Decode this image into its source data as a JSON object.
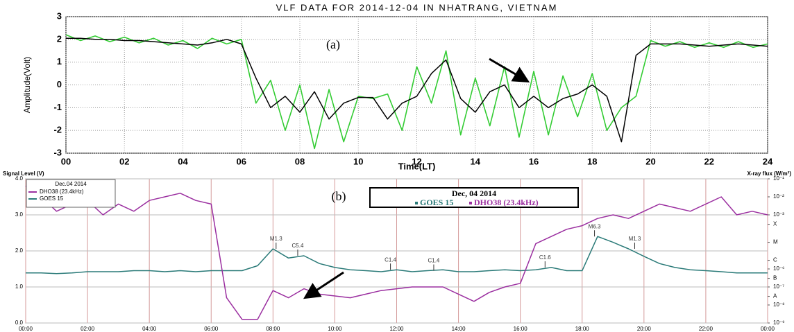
{
  "chart_data": [
    {
      "type": "line",
      "title": "VLF DATA FOR 2014-12-04 IN NHATRANG, VIETNAM",
      "xlabel": "Time(LT)",
      "ylabel": "Amplitude(Volt)",
      "annotation": "(a)",
      "x": [
        0,
        0.5,
        1,
        1.5,
        2,
        2.5,
        3,
        3.5,
        4,
        4.5,
        5,
        5.5,
        6,
        6.5,
        7,
        7.5,
        8,
        8.5,
        9,
        9.5,
        10,
        10.5,
        11,
        11.5,
        12,
        12.5,
        13,
        13.5,
        14,
        14.5,
        15,
        15.5,
        16,
        16.5,
        17,
        17.5,
        18,
        18.5,
        19,
        19.5,
        20,
        20.5,
        21,
        21.5,
        22,
        22.5,
        23,
        23.5,
        24
      ],
      "xlim": [
        0,
        24
      ],
      "xticks": [
        {
          "value": 0,
          "label": "00"
        },
        {
          "value": 2,
          "label": "02"
        },
        {
          "value": 4,
          "label": "04"
        },
        {
          "value": 6,
          "label": "06"
        },
        {
          "value": 8,
          "label": "08"
        },
        10,
        12,
        14,
        16,
        18,
        20,
        22,
        24
      ],
      "ylim": [
        -3,
        3
      ],
      "yticks": [
        -3,
        -2,
        -1,
        0,
        1,
        2,
        3
      ],
      "grid": true,
      "series": [
        {
          "color": "#33cc33",
          "values": [
            2.2,
            1.95,
            2.15,
            1.9,
            2.1,
            1.85,
            2.05,
            1.75,
            1.95,
            1.6,
            2.05,
            1.8,
            2.0,
            -0.8,
            0.2,
            -2.0,
            0.0,
            -2.8,
            -0.2,
            -2.5,
            -0.5,
            -0.6,
            -0.4,
            -2.0,
            0.8,
            -0.8,
            1.5,
            -2.2,
            0.3,
            -1.8,
            0.8,
            -2.3,
            0.6,
            -2.2,
            0.4,
            -1.4,
            0.5,
            -2.0,
            -1.0,
            -0.5,
            1.95,
            1.7,
            1.9,
            1.65,
            1.85,
            1.65,
            1.9,
            1.65,
            1.8
          ]
        },
        {
          "color": "#000000",
          "values": [
            2.05,
            2.05,
            2.0,
            2.0,
            1.95,
            1.95,
            1.9,
            1.85,
            1.8,
            1.75,
            1.85,
            2.0,
            1.8,
            0.3,
            -1.0,
            -0.5,
            -1.2,
            -0.3,
            -1.5,
            -0.8,
            -0.55,
            -0.55,
            -1.5,
            -0.8,
            -0.5,
            0.5,
            1.1,
            -0.6,
            -1.2,
            -0.3,
            0.0,
            -1.0,
            -0.5,
            -1.0,
            -0.6,
            -0.4,
            0.0,
            -0.5,
            -2.5,
            1.3,
            1.8,
            1.8,
            1.8,
            1.75,
            1.7,
            1.75,
            1.8,
            1.75,
            1.7
          ]
        }
      ]
    },
    {
      "type": "line",
      "ylabel": "Signal Level (V)",
      "y2label": "X-ray flux (W/m²)",
      "annotation": "(b)",
      "legend_title": "Dec, 04 2014",
      "legend2_title": "Dec.04 2014",
      "x": [
        0,
        0.5,
        1,
        1.5,
        2,
        2.5,
        3,
        3.5,
        4,
        4.5,
        5,
        5.5,
        6,
        6.5,
        7,
        7.5,
        8,
        8.5,
        9,
        9.5,
        10,
        10.5,
        11,
        11.5,
        12,
        12.5,
        13,
        13.5,
        14,
        14.5,
        15,
        15.5,
        16,
        16.5,
        17,
        17.5,
        18,
        18.5,
        19,
        19.5,
        20,
        20.5,
        21,
        21.5,
        22,
        22.5,
        23,
        23.5,
        24
      ],
      "xlim": [
        0,
        24
      ],
      "xticks": [
        {
          "value": 0,
          "label": "00:00"
        },
        {
          "value": 2,
          "label": "02:00"
        },
        {
          "value": 4,
          "label": "04:00"
        },
        {
          "value": 6,
          "label": "06:00"
        },
        {
          "value": 8,
          "label": "08:00"
        },
        {
          "value": 10,
          "label": "10:00"
        },
        {
          "value": 12,
          "label": "12:00"
        },
        {
          "value": 14,
          "label": "14:00"
        },
        {
          "value": 16,
          "label": "16:00"
        },
        {
          "value": 18,
          "label": "18:00"
        },
        {
          "value": 20,
          "label": "20:00"
        },
        {
          "value": 22,
          "label": "22:00"
        },
        {
          "value": 24,
          "label": "00:00"
        }
      ],
      "ylim": [
        0,
        4
      ],
      "yticks": [
        {
          "value": 0,
          "label": "0.0"
        },
        {
          "value": 1,
          "label": "1.0"
        },
        {
          "value": 2,
          "label": "2.0"
        },
        {
          "value": 3,
          "label": "3.0"
        },
        {
          "value": 4,
          "label": "4.0"
        }
      ],
      "y2log": true,
      "y2lim": [
        1e-09,
        0.1
      ],
      "y2ticks": [
        {
          "value": 0.1,
          "label": "10⁻¹"
        },
        {
          "value": 0.01,
          "label": "10⁻²"
        },
        {
          "value": 0.001,
          "label": "10⁻³"
        },
        {
          "value": 0.0003,
          "label": "X"
        },
        {
          "value": 3e-05,
          "label": "M"
        },
        {
          "value": 3e-06,
          "label": "C"
        },
        {
          "value": 1e-06,
          "label": "10⁻⁶"
        },
        {
          "value": 3e-07,
          "label": "B"
        },
        {
          "value": 1e-07,
          "label": "10⁻⁷"
        },
        {
          "value": 3e-08,
          "label": "A"
        },
        {
          "value": 1e-08,
          "label": "10⁻⁸"
        },
        {
          "value": 1e-09,
          "label": "10⁻⁹"
        }
      ],
      "grid": true,
      "flares": [
        {
          "text": "M1.3",
          "x": 8.1
        },
        {
          "text": "C5.4",
          "x": 8.8
        },
        {
          "text": "C1.4",
          "x": 11.8
        },
        {
          "text": "C1.4",
          "x": 13.2
        },
        {
          "text": "C1.6",
          "x": 16.8
        },
        {
          "text": "M6.3",
          "x": 18.4
        },
        {
          "text": "M1.3",
          "x": 19.7
        }
      ],
      "series": [
        {
          "name": "GOES 15",
          "color": "#2a7a78",
          "axis": "y2",
          "values": [
            6e-07,
            6e-07,
            5.5e-07,
            6e-07,
            7e-07,
            7e-07,
            7e-07,
            8e-07,
            8e-07,
            7e-07,
            8e-07,
            7e-07,
            8e-07,
            8e-07,
            8e-07,
            1.5e-06,
            1.3e-05,
            4e-06,
            5.4e-06,
            2e-06,
            1.2e-06,
            9e-07,
            8e-07,
            7e-07,
            9e-07,
            7e-07,
            8e-07,
            9e-07,
            7e-07,
            7e-07,
            8e-07,
            9e-07,
            8e-07,
            9e-07,
            1.2e-06,
            8e-07,
            8e-07,
            6.3e-05,
            3e-05,
            1.3e-05,
            5e-06,
            2e-06,
            1.2e-06,
            9e-07,
            8e-07,
            7e-07,
            6e-07,
            6e-07,
            6e-07
          ]
        },
        {
          "name": "DHO38 (23.4kHz)",
          "color": "#9b2fa0",
          "values": [
            3.8,
            3.5,
            3.1,
            3.3,
            3.4,
            3.0,
            3.3,
            3.1,
            3.4,
            3.5,
            3.6,
            3.4,
            3.3,
            0.7,
            0.1,
            0.1,
            0.9,
            0.7,
            0.95,
            0.8,
            0.75,
            0.7,
            0.8,
            0.9,
            0.95,
            1.0,
            1.0,
            1.0,
            0.8,
            0.6,
            0.85,
            1.0,
            1.1,
            2.2,
            2.4,
            2.6,
            2.7,
            2.9,
            3.0,
            2.9,
            3.1,
            3.3,
            3.2,
            3.1,
            3.3,
            3.5,
            3.0,
            3.1,
            3.0
          ]
        }
      ]
    }
  ]
}
